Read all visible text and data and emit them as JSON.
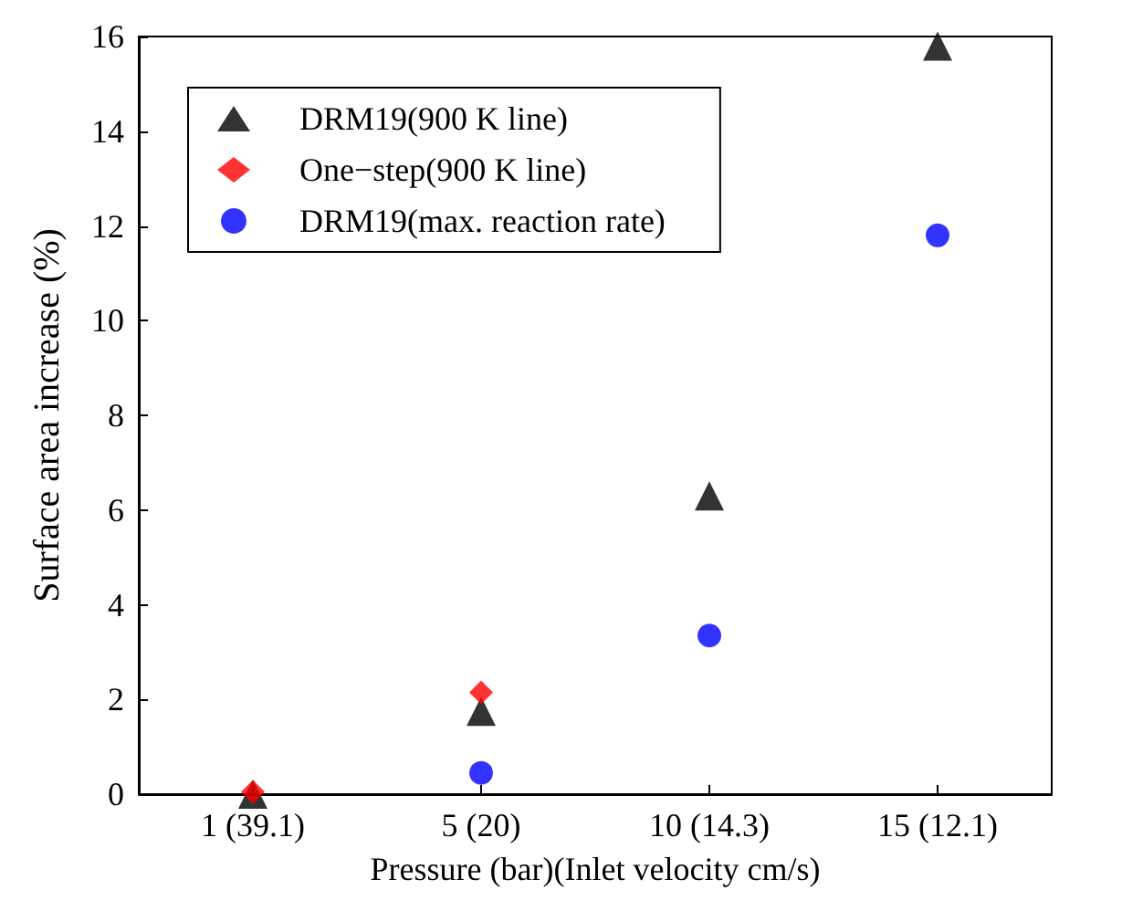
{
  "chart_data": {
    "type": "scatter",
    "xlabel": "Pressure (bar)(Inlet velocity cm/s)",
    "ylabel": "Surface area increase (%)",
    "categories": [
      "1 (39.1)",
      "5 (20)",
      "10 (14.3)",
      "15 (12.1)"
    ],
    "ylim": [
      0,
      16
    ],
    "yticks": [
      0,
      2,
      4,
      6,
      8,
      10,
      12,
      14,
      16
    ],
    "grid": false,
    "legend": "top left",
    "series": [
      {
        "name": "DRM19(900 K line)",
        "color": "#000000",
        "marker": "triangle",
        "values": [
          0,
          1.75,
          6.3,
          15.8
        ]
      },
      {
        "name": "One−step(900 K line)",
        "color": "#ff0000",
        "marker": "diamond",
        "values": [
          0.05,
          2.15,
          null,
          null
        ]
      },
      {
        "name": "DRM19(max. reaction rate)",
        "color": "#0000ff",
        "marker": "circle",
        "values": [
          null,
          0.45,
          3.35,
          11.8
        ]
      }
    ]
  }
}
